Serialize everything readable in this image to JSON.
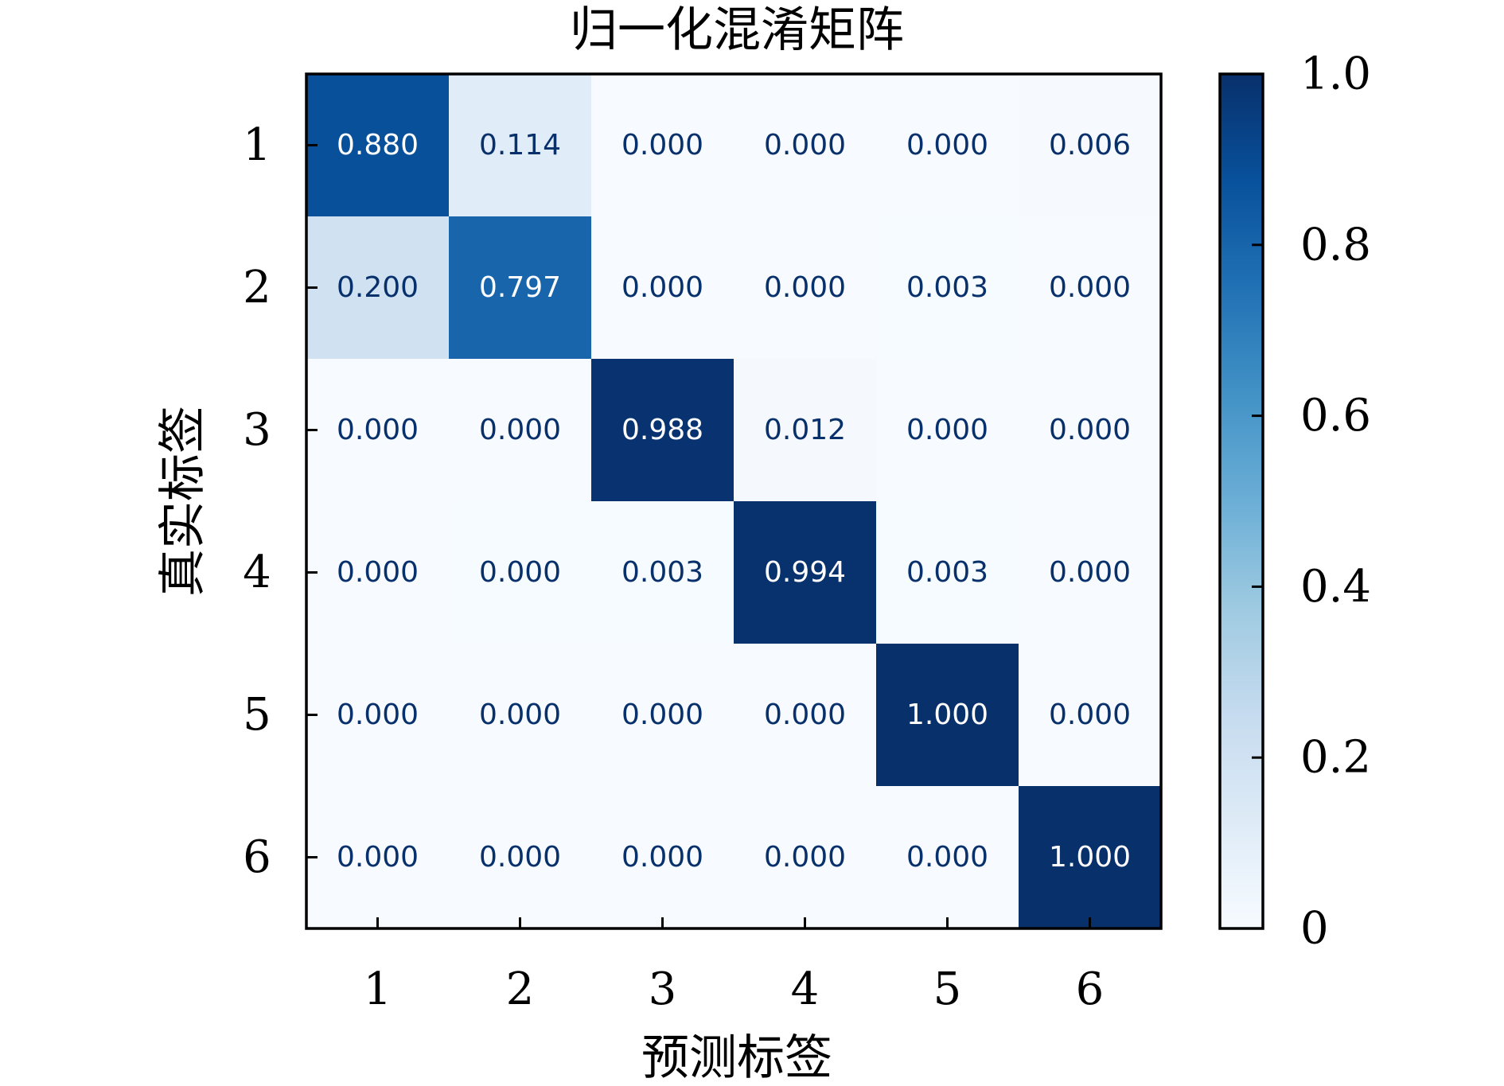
{
  "chart_data": {
    "type": "heatmap",
    "title": "归一化混淆矩阵",
    "xlabel": "预测标签",
    "ylabel": "真实标签",
    "x_categories": [
      "1",
      "2",
      "3",
      "4",
      "5",
      "6"
    ],
    "y_categories": [
      "1",
      "2",
      "3",
      "4",
      "5",
      "6"
    ],
    "values": [
      [
        0.88,
        0.114,
        0.0,
        0.0,
        0.0,
        0.006
      ],
      [
        0.2,
        0.797,
        0.0,
        0.0,
        0.003,
        0.0
      ],
      [
        0.0,
        0.0,
        0.988,
        0.012,
        0.0,
        0.0
      ],
      [
        0.0,
        0.003,
        0.003,
        0.994,
        0.003,
        0.0
      ],
      [
        0.0,
        0.0,
        0.0,
        0.0,
        1.0,
        0.0
      ],
      [
        0.0,
        0.0,
        0.0,
        0.0,
        0.0,
        1.0
      ]
    ],
    "value_labels": [
      [
        "0.880",
        "0.114",
        "0.000",
        "0.000",
        "0.000",
        "0.006"
      ],
      [
        "0.200",
        "0.797",
        "0.000",
        "0.000",
        "0.003",
        "0.000"
      ],
      [
        "0.000",
        "0.000",
        "0.988",
        "0.012",
        "0.000",
        "0.000"
      ],
      [
        "0.000",
        "0.000",
        "0.003",
        "0.994",
        "0.003",
        "0.000"
      ],
      [
        "0.000",
        "0.000",
        "0.000",
        "0.000",
        "1.000",
        "0.000"
      ],
      [
        "0.000",
        "0.000",
        "0.000",
        "0.000",
        "0.000",
        "1.000"
      ]
    ],
    "colormap": "Blues",
    "colorbar": {
      "range": [
        0,
        1.0
      ],
      "ticks": [
        0,
        0.2,
        0.4,
        0.6,
        0.8,
        1.0
      ],
      "tick_labels": [
        "0",
        "0.2",
        "0.4",
        "0.6",
        "0.8",
        "1.0"
      ]
    },
    "text_colors": {
      "light": "#ffffff",
      "dark": "#08306b"
    },
    "grid": false,
    "legend": "colorbar-right"
  }
}
